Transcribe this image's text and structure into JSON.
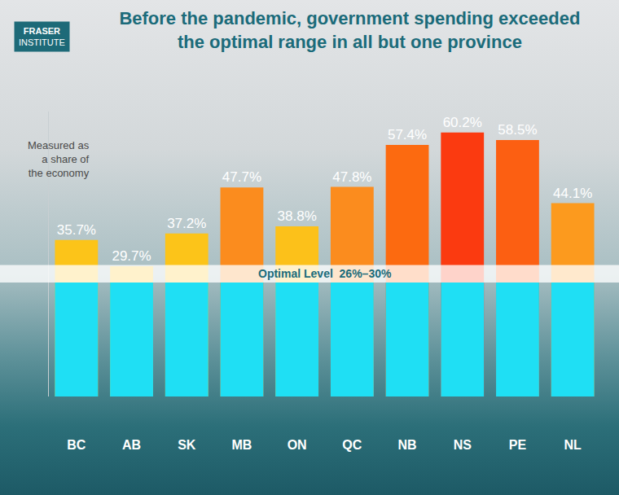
{
  "chart_data": {
    "type": "bar",
    "title": "Before the pandemic, government spending exceeded\nthe optimal range in all but one province",
    "logo": [
      "FRASER",
      "INSTITUTE"
    ],
    "note": "Measured as\na share of\nthe economy",
    "categories": [
      "BC",
      "AB",
      "SK",
      "MB",
      "ON",
      "QC",
      "NB",
      "NS",
      "PE",
      "NL"
    ],
    "values": [
      35.7,
      29.7,
      37.2,
      47.7,
      38.8,
      47.8,
      57.4,
      60.2,
      58.5,
      44.1
    ],
    "value_labels": [
      "35.7%",
      "29.7%",
      "37.2%",
      "47.7%",
      "38.8%",
      "47.8%",
      "57.4%",
      "60.2%",
      "58.5%",
      "44.1%"
    ],
    "colors": [
      "#fcc419",
      "#fcc419",
      "#fcc419",
      "#fb8c1e",
      "#fcc11a",
      "#fb8c1e",
      "#fc6a10",
      "#fb3a10",
      "#fc5f12",
      "#fc9a1e"
    ],
    "optimal_level": {
      "label": "Optimal Level  26%–30%",
      "range": [
        26,
        30
      ]
    },
    "ylim": [
      0,
      65
    ],
    "data_labels": true,
    "tick_labels": "x",
    "grid": false
  }
}
